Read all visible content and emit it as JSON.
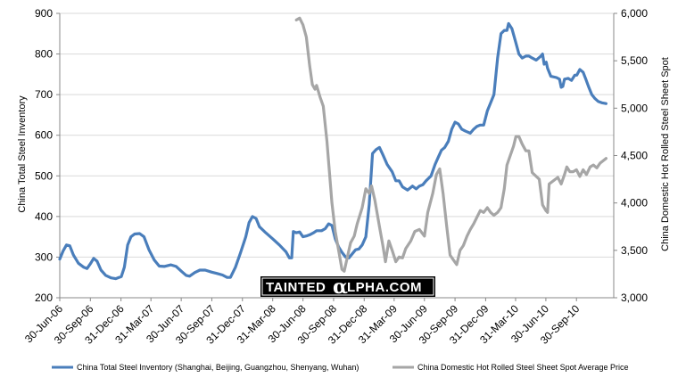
{
  "watermark": {
    "pre": "TAINTED",
    "alpha": "α",
    "post": "LPHA.COM"
  },
  "chart_data": {
    "type": "line",
    "xlabel": "",
    "ylabel_left": "China Total Steel Inventory",
    "ylabel_right": "China Domestic Hot Rolled Steel Sheet Spot",
    "ylim_left": [
      200,
      900
    ],
    "ylim_right": [
      3000,
      6000
    ],
    "yticks_left": [
      "200",
      "300",
      "400",
      "500",
      "600",
      "700",
      "800",
      "900"
    ],
    "yticks_right": [
      "3,000",
      "3,500",
      "4,000",
      "4,500",
      "5,000",
      "5,500",
      "6,000"
    ],
    "x_range": [
      "2006-06-30",
      "2011-01-20"
    ],
    "x_tick_labels": [
      {
        "label": "30-Jun-06",
        "date": "2006-06-30"
      },
      {
        "label": "30-Sep-06",
        "date": "2006-09-30"
      },
      {
        "label": "31-Dec-06",
        "date": "2006-12-31"
      },
      {
        "label": "31-Mar-07",
        "date": "2007-03-31"
      },
      {
        "label": "30-Jun-07",
        "date": "2007-06-30"
      },
      {
        "label": "30-Sep-07",
        "date": "2007-09-30"
      },
      {
        "label": "31-Dec-07",
        "date": "2007-12-31"
      },
      {
        "label": "31-Mar-08",
        "date": "2008-03-31"
      },
      {
        "label": "30-Jun-08",
        "date": "2008-06-30"
      },
      {
        "label": "30-Sep-08",
        "date": "2008-09-30"
      },
      {
        "label": "31-Dec-08",
        "date": "2008-12-31"
      },
      {
        "label": "31-Mar-09",
        "date": "2009-03-31"
      },
      {
        "label": "30-Jun-09",
        "date": "2009-06-30"
      },
      {
        "label": "30-Sep-09",
        "date": "2009-09-30"
      },
      {
        "label": "31-Dec-09",
        "date": "2009-12-31"
      },
      {
        "label": "31-Mar-10",
        "date": "2010-03-31"
      },
      {
        "label": "30-Jun-10",
        "date": "2010-06-30"
      },
      {
        "label": "30-Sep-10",
        "date": "2010-09-30"
      }
    ],
    "grid": "horizontal",
    "legend_position": "bottom",
    "series": [
      {
        "name": "China Total Steel Inventory (Shanghai, Beijing, Guangzhou, Shenyang, Wuhan)",
        "axis": "left",
        "color": "#4a7ebb",
        "points": [
          [
            "2006-06-30",
            295
          ],
          [
            "2006-07-10",
            315
          ],
          [
            "2006-07-20",
            330
          ],
          [
            "2006-07-30",
            328
          ],
          [
            "2006-08-10",
            305
          ],
          [
            "2006-08-25",
            285
          ],
          [
            "2006-09-10",
            275
          ],
          [
            "2006-09-20",
            272
          ],
          [
            "2006-10-01",
            285
          ],
          [
            "2006-10-10",
            297
          ],
          [
            "2006-10-20",
            290
          ],
          [
            "2006-11-01",
            268
          ],
          [
            "2006-11-15",
            255
          ],
          [
            "2006-12-01",
            249
          ],
          [
            "2006-12-15",
            247
          ],
          [
            "2007-01-01",
            252
          ],
          [
            "2007-01-10",
            275
          ],
          [
            "2007-01-20",
            330
          ],
          [
            "2007-01-30",
            350
          ],
          [
            "2007-02-10",
            357
          ],
          [
            "2007-02-25",
            358
          ],
          [
            "2007-03-10",
            350
          ],
          [
            "2007-03-25",
            318
          ],
          [
            "2007-04-10",
            293
          ],
          [
            "2007-04-25",
            278
          ],
          [
            "2007-05-10",
            277
          ],
          [
            "2007-05-30",
            281
          ],
          [
            "2007-06-15",
            277
          ],
          [
            "2007-07-01",
            265
          ],
          [
            "2007-07-15",
            255
          ],
          [
            "2007-07-25",
            253
          ],
          [
            "2007-08-10",
            262
          ],
          [
            "2007-08-25",
            268
          ],
          [
            "2007-09-10",
            268
          ],
          [
            "2007-09-30",
            263
          ],
          [
            "2007-10-15",
            260
          ],
          [
            "2007-11-01",
            256
          ],
          [
            "2007-11-15",
            250
          ],
          [
            "2007-11-25",
            250
          ],
          [
            "2007-12-10",
            275
          ],
          [
            "2007-12-25",
            310
          ],
          [
            "2008-01-10",
            350
          ],
          [
            "2008-01-20",
            385
          ],
          [
            "2008-01-30",
            400
          ],
          [
            "2008-02-10",
            395
          ],
          [
            "2008-02-20",
            375
          ],
          [
            "2008-03-10",
            360
          ],
          [
            "2008-03-31",
            345
          ],
          [
            "2008-04-20",
            330
          ],
          [
            "2008-05-10",
            313
          ],
          [
            "2008-05-20",
            298
          ],
          [
            "2008-05-27",
            298
          ],
          [
            "2008-06-01",
            363
          ],
          [
            "2008-06-10",
            360
          ],
          [
            "2008-06-20",
            362
          ],
          [
            "2008-06-30",
            350
          ],
          [
            "2008-07-10",
            352
          ],
          [
            "2008-07-20",
            355
          ],
          [
            "2008-08-01",
            360
          ],
          [
            "2008-08-10",
            365
          ],
          [
            "2008-08-25",
            365
          ],
          [
            "2008-09-05",
            370
          ],
          [
            "2008-09-15",
            382
          ],
          [
            "2008-09-25",
            378
          ],
          [
            "2008-10-05",
            345
          ],
          [
            "2008-10-15",
            325
          ],
          [
            "2008-10-25",
            312
          ],
          [
            "2008-11-05",
            300
          ],
          [
            "2008-11-15",
            298
          ],
          [
            "2008-11-25",
            308
          ],
          [
            "2008-12-05",
            318
          ],
          [
            "2008-12-15",
            320
          ],
          [
            "2008-12-25",
            330
          ],
          [
            "2009-01-05",
            350
          ],
          [
            "2009-01-15",
            430
          ],
          [
            "2009-01-25",
            555
          ],
          [
            "2009-02-05",
            565
          ],
          [
            "2009-02-15",
            570
          ],
          [
            "2009-02-25",
            552
          ],
          [
            "2009-03-10",
            528
          ],
          [
            "2009-03-25",
            510
          ],
          [
            "2009-04-05",
            488
          ],
          [
            "2009-04-15",
            488
          ],
          [
            "2009-04-25",
            473
          ],
          [
            "2009-05-10",
            465
          ],
          [
            "2009-05-25",
            475
          ],
          [
            "2009-06-05",
            468
          ],
          [
            "2009-06-15",
            475
          ],
          [
            "2009-06-25",
            478
          ],
          [
            "2009-07-05",
            488
          ],
          [
            "2009-07-20",
            500
          ],
          [
            "2009-08-01",
            528
          ],
          [
            "2009-08-10",
            545
          ],
          [
            "2009-08-20",
            563
          ],
          [
            "2009-08-30",
            570
          ],
          [
            "2009-09-10",
            585
          ],
          [
            "2009-09-20",
            615
          ],
          [
            "2009-09-30",
            632
          ],
          [
            "2009-10-10",
            628
          ],
          [
            "2009-10-20",
            615
          ],
          [
            "2009-11-01",
            610
          ],
          [
            "2009-11-15",
            605
          ],
          [
            "2009-11-25",
            615
          ],
          [
            "2009-12-05",
            622
          ],
          [
            "2009-12-15",
            625
          ],
          [
            "2009-12-25",
            625
          ],
          [
            "2010-01-05",
            660
          ],
          [
            "2010-01-15",
            680
          ],
          [
            "2010-01-25",
            700
          ],
          [
            "2010-02-05",
            790
          ],
          [
            "2010-02-15",
            850
          ],
          [
            "2010-02-25",
            858
          ],
          [
            "2010-03-05",
            858
          ],
          [
            "2010-03-10",
            875
          ],
          [
            "2010-03-20",
            862
          ],
          [
            "2010-03-31",
            830
          ],
          [
            "2010-04-10",
            800
          ],
          [
            "2010-04-20",
            790
          ],
          [
            "2010-05-01",
            795
          ],
          [
            "2010-05-10",
            795
          ],
          [
            "2010-05-20",
            790
          ],
          [
            "2010-06-01",
            785
          ],
          [
            "2010-06-15",
            795
          ],
          [
            "2010-06-20",
            800
          ],
          [
            "2010-06-25",
            775
          ],
          [
            "2010-07-01",
            780
          ],
          [
            "2010-07-05",
            765
          ],
          [
            "2010-07-15",
            745
          ],
          [
            "2010-08-01",
            742
          ],
          [
            "2010-08-10",
            738
          ],
          [
            "2010-08-15",
            718
          ],
          [
            "2010-08-20",
            720
          ],
          [
            "2010-08-25",
            738
          ],
          [
            "2010-09-05",
            740
          ],
          [
            "2010-09-15",
            735
          ],
          [
            "2010-09-25",
            748
          ],
          [
            "2010-10-01",
            748
          ],
          [
            "2010-10-10",
            762
          ],
          [
            "2010-10-20",
            755
          ],
          [
            "2010-10-28",
            738
          ],
          [
            "2010-11-05",
            720
          ],
          [
            "2010-11-15",
            700
          ],
          [
            "2010-11-25",
            690
          ],
          [
            "2010-12-05",
            683
          ],
          [
            "2010-12-15",
            680
          ],
          [
            "2010-12-28",
            678
          ]
        ]
      },
      {
        "name": "China Domestic Hot Rolled Steel Sheet Spot Average Price",
        "axis": "right",
        "color": "#a6a6a6",
        "points": [
          [
            "2008-06-10",
            5930
          ],
          [
            "2008-06-20",
            5950
          ],
          [
            "2008-06-30",
            5880
          ],
          [
            "2008-07-10",
            5750
          ],
          [
            "2008-07-20",
            5450
          ],
          [
            "2008-07-28",
            5250
          ],
          [
            "2008-08-05",
            5200
          ],
          [
            "2008-08-10",
            5240
          ],
          [
            "2008-08-20",
            5120
          ],
          [
            "2008-08-30",
            5020
          ],
          [
            "2008-09-10",
            4650
          ],
          [
            "2008-09-25",
            4000
          ],
          [
            "2008-10-05",
            3700
          ],
          [
            "2008-10-15",
            3500
          ],
          [
            "2008-10-25",
            3300
          ],
          [
            "2008-11-01",
            3280
          ],
          [
            "2008-11-10",
            3420
          ],
          [
            "2008-11-20",
            3580
          ],
          [
            "2008-12-01",
            3650
          ],
          [
            "2008-12-10",
            3780
          ],
          [
            "2008-12-25",
            3950
          ],
          [
            "2009-01-05",
            4150
          ],
          [
            "2009-01-15",
            4100
          ],
          [
            "2009-01-22",
            4180
          ],
          [
            "2009-02-01",
            4030
          ],
          [
            "2009-02-15",
            3750
          ],
          [
            "2009-02-25",
            3550
          ],
          [
            "2009-03-05",
            3380
          ],
          [
            "2009-03-15",
            3600
          ],
          [
            "2009-03-25",
            3500
          ],
          [
            "2009-04-05",
            3380
          ],
          [
            "2009-04-15",
            3430
          ],
          [
            "2009-04-25",
            3420
          ],
          [
            "2009-05-05",
            3520
          ],
          [
            "2009-05-20",
            3600
          ],
          [
            "2009-06-01",
            3700
          ],
          [
            "2009-06-15",
            3720
          ],
          [
            "2009-06-30",
            3650
          ],
          [
            "2009-07-10",
            3900
          ],
          [
            "2009-07-25",
            4100
          ],
          [
            "2009-08-05",
            4300
          ],
          [
            "2009-08-15",
            4360
          ],
          [
            "2009-08-25",
            4100
          ],
          [
            "2009-09-05",
            3750
          ],
          [
            "2009-09-15",
            3450
          ],
          [
            "2009-09-25",
            3400
          ],
          [
            "2009-10-05",
            3350
          ],
          [
            "2009-10-15",
            3500
          ],
          [
            "2009-10-25",
            3550
          ],
          [
            "2009-11-05",
            3650
          ],
          [
            "2009-11-15",
            3720
          ],
          [
            "2009-11-25",
            3780
          ],
          [
            "2009-12-05",
            3850
          ],
          [
            "2009-12-15",
            3920
          ],
          [
            "2009-12-25",
            3900
          ],
          [
            "2010-01-05",
            3950
          ],
          [
            "2010-01-15",
            3900
          ],
          [
            "2010-01-25",
            3870
          ],
          [
            "2010-02-05",
            3900
          ],
          [
            "2010-02-15",
            3950
          ],
          [
            "2010-02-25",
            4150
          ],
          [
            "2010-03-05",
            4400
          ],
          [
            "2010-03-15",
            4500
          ],
          [
            "2010-03-25",
            4600
          ],
          [
            "2010-04-01",
            4700
          ],
          [
            "2010-04-10",
            4700
          ],
          [
            "2010-04-20",
            4620
          ],
          [
            "2010-05-01",
            4550
          ],
          [
            "2010-05-10",
            4550
          ],
          [
            "2010-05-20",
            4320
          ],
          [
            "2010-06-01",
            4280
          ],
          [
            "2010-06-10",
            4250
          ],
          [
            "2010-06-20",
            3980
          ],
          [
            "2010-06-30",
            3920
          ],
          [
            "2010-07-05",
            3900
          ],
          [
            "2010-07-10",
            4200
          ],
          [
            "2010-07-25",
            4240
          ],
          [
            "2010-08-05",
            4270
          ],
          [
            "2010-08-15",
            4200
          ],
          [
            "2010-08-25",
            4300
          ],
          [
            "2010-09-01",
            4380
          ],
          [
            "2010-09-10",
            4330
          ],
          [
            "2010-09-20",
            4330
          ],
          [
            "2010-09-30",
            4350
          ],
          [
            "2010-10-10",
            4280
          ],
          [
            "2010-10-20",
            4350
          ],
          [
            "2010-10-30",
            4300
          ],
          [
            "2010-11-10",
            4380
          ],
          [
            "2010-11-20",
            4400
          ],
          [
            "2010-11-30",
            4370
          ],
          [
            "2010-12-10",
            4420
          ],
          [
            "2010-12-28",
            4470
          ]
        ]
      }
    ]
  }
}
